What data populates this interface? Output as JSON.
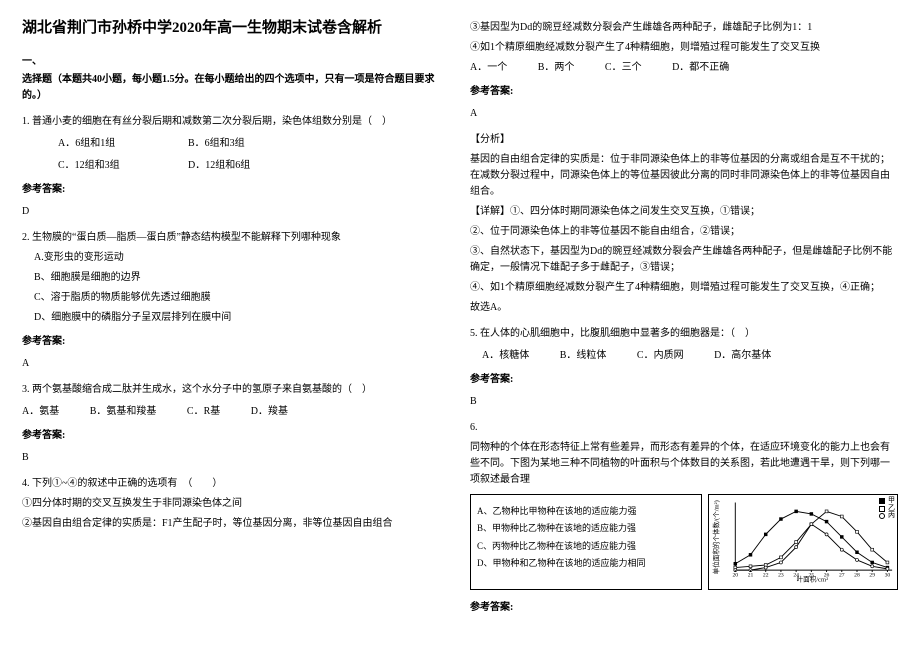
{
  "title": "湖北省荆门市孙桥中学2020年高一生物期末试卷含解析",
  "section1_hdr": "一、",
  "section1_instr": "选择题（本题共40小题，每小题1.5分。在每小题给出的四个选项中，只有一项是符合题目要求的。）",
  "q1": {
    "text": "1. 普通小麦的细胞在有丝分裂后期和减数第二次分裂后期，染色体组数分别是（　）",
    "a": "A．6组和1组",
    "b": "B．6组和3组",
    "c": "C．12组和3组",
    "d": "D．12组和6组",
    "ans_label": "参考答案:",
    "ans": "D"
  },
  "q2": {
    "text": "2. 生物膜的“蛋白质—脂质—蛋白质”静态结构模型不能解释下列哪种现象",
    "a": "A.变形虫的变形运动",
    "b": "B、细胞膜是细胞的边界",
    "c": "C、溶于脂质的物质能够优先透过细胞膜",
    "d": "D、细胞膜中的磷脂分子呈双层排列在膜中间",
    "ans_label": "参考答案:",
    "ans": "A"
  },
  "q3": {
    "text": "3. 两个氨基酸缩合成二肽并生成水，这个水分子中的氢原子来自氨基酸的（　）",
    "a": "A．氨基",
    "b": "B．氨基和羧基",
    "c": "C．R基",
    "d": "D．羧基",
    "ans_label": "参考答案:",
    "ans": "B"
  },
  "q4": {
    "text": "4. 下列①~④的叙述中正确的选项有　（　　）",
    "s1": "①四分体时期的交叉互换发生于非同源染色体之间",
    "s2": "②基因自由组合定律的实质是：F1产生配子时，等位基因分离，非等位基因自由组合",
    "s3": "③基因型为Dd的豌豆经减数分裂会产生雌雄各两种配子，雌雄配子比例为1：1",
    "s4": "④如1个精原细胞经减数分裂产生了4种精细胞，则增殖过程可能发生了交叉互换",
    "a": "A．一个",
    "b": "B．两个",
    "c": "C．三个",
    "d": "D．都不正确",
    "ans_label": "参考答案:",
    "ans": "A",
    "analysis_label": "【分析】",
    "analysis": "基因的自由组合定律的实质是：位于非同源染色体上的非等位基因的分离或组合是互不干扰的；在减数分裂过程中，同源染色体上的等位基因彼此分离的同时非同源染色体上的非等位基因自由组合。",
    "detail_label": "【详解】①、四分体时期同源染色体之间发生交叉互换，①错误；",
    "d2": "②、位于同源染色体上的非等位基因不能自由组合，②错误；",
    "d3": "③、自然状态下，基因型为Dd的豌豆经减数分裂会产生雌雄各两种配子，但是雌雄配子比例不能确定，一般情况下雄配子多于雌配子，③错误；",
    "d4": "④、如1个精原细胞经减数分裂产生了4种精细胞，则增殖过程可能发生了交叉互换，④正确；",
    "d5": "故选A。"
  },
  "q5": {
    "text": "5. 在人体的心肌细胞中，比腹肌细胞中显著多的细胞器是：（　）",
    "a": "A．核糖体",
    "b": "B．线粒体",
    "c": "C．内质网",
    "d": "D．高尔基体",
    "ans_label": "参考答案:",
    "ans": "B"
  },
  "q6": {
    "text": "6.",
    "body": "同物种的个体在形态特征上常有些差异，而形态有差异的个体，在适应环境变化的能力上也会有些不同。下图为某地三种不同植物的叶面积与个体数目的关系图，若此地遭遇干旱，则下列哪一项叙述最合理",
    "a": "A、乙物种比甲物种在该地的适应能力强",
    "b": "B、甲物种比乙物种在该地的适应能力强",
    "c": "C、丙物种比乙物种在该地的适应能力强",
    "d": "D、甲物种和乙物种在该地的适应能力相同",
    "ans_label": "参考答案:",
    "chart": {
      "xlabel": "叶面积/cm²",
      "ylabel": "单位面积的个体数/(个/m²)",
      "xticks": [
        "20",
        "21",
        "22",
        "23",
        "24",
        "25",
        "26",
        "27",
        "28",
        "29",
        "30"
      ],
      "legend": [
        "甲",
        "乙",
        "丙"
      ],
      "series": {
        "jia": [
          5,
          12,
          28,
          40,
          46,
          44,
          38,
          26,
          14,
          6,
          2
        ],
        "yi": [
          2,
          3,
          4,
          10,
          22,
          36,
          46,
          42,
          30,
          16,
          6
        ],
        "bing": [
          0,
          0,
          2,
          6,
          18,
          36,
          28,
          16,
          8,
          3,
          1
        ]
      },
      "colors": {
        "line": "#000000"
      }
    }
  }
}
